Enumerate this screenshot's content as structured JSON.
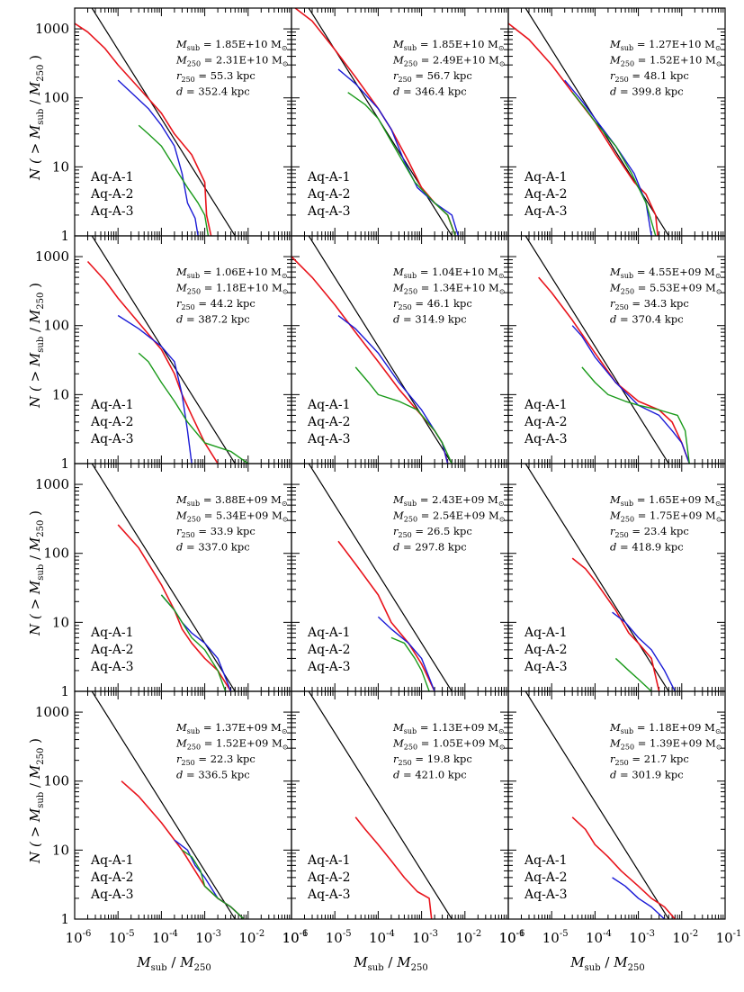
{
  "colors": {
    "Aq-A-1": "#e8141c",
    "Aq-A-2": "#1a1ad6",
    "Aq-A-3": "#1a9a1a",
    "reference": "#000000"
  },
  "axes": {
    "xlabel": {
      "main": "M",
      "sub": "sub",
      "rest1": " / ",
      "main2": "M",
      "sub2": "250"
    },
    "ylabel": {
      "pre": "N ( > ",
      "main": "M",
      "sub": "sub",
      "mid": " / ",
      "main2": "M",
      "sub2": "250",
      "post": " )"
    },
    "x_scale": "log",
    "y_scale": "log",
    "xlim": [
      1e-06,
      0.1
    ],
    "ylim": [
      1,
      2000
    ],
    "x_tick_labels": [
      {
        "base": "10",
        "exp": "-6",
        "value": 1e-06
      },
      {
        "base": "10",
        "exp": "-5",
        "value": 1e-05
      },
      {
        "base": "10",
        "exp": "-4",
        "value": 0.0001
      },
      {
        "base": "10",
        "exp": "-3",
        "value": 0.001
      },
      {
        "base": "10",
        "exp": "-2",
        "value": 0.01
      },
      {
        "base": "10",
        "exp": "-1",
        "value": 0.1
      }
    ],
    "y_tick_labels": [
      {
        "text": "1",
        "value": 1
      },
      {
        "text": "10",
        "value": 10
      },
      {
        "text": "100",
        "value": 100
      },
      {
        "text": "1000",
        "value": 1000
      }
    ]
  },
  "legend": [
    "Aq-A-1",
    "Aq-A-2",
    "Aq-A-3"
  ],
  "chart_data": {
    "type": "line",
    "grid": false,
    "legend_placement": "lower-left",
    "reference_line": {
      "x": [
        1e-06,
        0.01
      ],
      "y": [
        5000,
        0.5
      ]
    },
    "panels": [
      {
        "annotation": [
          "1.85E+10",
          "2.31E+10",
          "55.3",
          "352.4"
        ],
        "series": [
          {
            "name": "Aq-A-1",
            "x": [
              1e-06,
              2e-06,
              5e-06,
              1e-05,
              3e-05,
              0.0001,
              0.0002,
              0.0005,
              0.001,
              0.0011,
              0.0014
            ],
            "y": [
              1200,
              900,
              520,
              300,
              140,
              60,
              30,
              15,
              6,
              2,
              1
            ]
          },
          {
            "name": "Aq-A-2",
            "x": [
              1e-05,
              2e-05,
              5e-05,
              0.0001,
              0.0002,
              0.0003,
              0.0004,
              0.0006,
              0.0007
            ],
            "y": [
              180,
              120,
              70,
              40,
              20,
              8,
              3,
              1.8,
              1
            ]
          },
          {
            "name": "Aq-A-3",
            "x": [
              3e-05,
              5e-05,
              0.0001,
              0.0002,
              0.0004,
              0.0007,
              0.001,
              0.0012
            ],
            "y": [
              40,
              30,
              20,
              10,
              5,
              3,
              2,
              1
            ]
          }
        ]
      },
      {
        "annotation": [
          "1.85E+10",
          "2.49E+10",
          "56.7",
          "346.4"
        ],
        "series": [
          {
            "name": "Aq-A-1",
            "x": [
              1e-06,
              3e-06,
              1e-05,
              3e-05,
              0.0001,
              0.0002,
              0.0005,
              0.001,
              0.002,
              0.004,
              0.006
            ],
            "y": [
              2200,
              1300,
              500,
              200,
              70,
              35,
              12,
              5,
              3,
              2,
              1
            ]
          },
          {
            "name": "Aq-A-2",
            "x": [
              1.2e-05,
              3e-05,
              0.0001,
              0.0002,
              0.0004,
              0.0008,
              0.002,
              0.005,
              0.007
            ],
            "y": [
              260,
              160,
              70,
              35,
              12,
              5,
              3,
              2,
              1
            ]
          },
          {
            "name": "Aq-A-3",
            "x": [
              2e-05,
              5e-05,
              0.0001,
              0.0003,
              0.0007,
              0.002,
              0.004,
              0.006
            ],
            "y": [
              120,
              80,
              50,
              15,
              6,
              3,
              2,
              1
            ]
          }
        ]
      },
      {
        "annotation": [
          "1.27E+10",
          "1.52E+10",
          "48.1",
          "399.8"
        ],
        "series": [
          {
            "name": "Aq-A-1",
            "x": [
              1e-06,
              3e-06,
              1e-05,
              3e-05,
              0.0001,
              0.0003,
              0.0008,
              0.0015,
              0.0025,
              0.0028
            ],
            "y": [
              1200,
              700,
              300,
              120,
              45,
              15,
              6,
              4,
              2,
              1
            ]
          },
          {
            "name": "Aq-A-2",
            "x": [
              2e-05,
              5e-05,
              0.0001,
              0.0003,
              0.0008,
              0.0015,
              0.002
            ],
            "y": [
              180,
              90,
              50,
              20,
              8,
              3,
              1
            ]
          },
          {
            "name": "Aq-A-3",
            "x": [
              3e-05,
              6e-05,
              0.0001,
              0.0003,
              0.0007,
              0.0015,
              0.0025
            ],
            "y": [
              120,
              70,
              45,
              20,
              8,
              3,
              1
            ]
          }
        ]
      },
      {
        "annotation": [
          "1.06E+10",
          "1.18E+10",
          "44.2",
          "387.2"
        ],
        "series": [
          {
            "name": "Aq-A-1",
            "x": [
              2e-06,
              5e-06,
              1e-05,
              3e-05,
              0.0001,
              0.0002,
              0.0003,
              0.0005,
              0.001,
              0.002
            ],
            "y": [
              850,
              450,
              250,
              110,
              45,
              20,
              10,
              5,
              2,
              1
            ]
          },
          {
            "name": "Aq-A-2",
            "x": [
              1e-05,
              3e-05,
              0.0001,
              0.0002,
              0.0003,
              0.0004,
              0.0005
            ],
            "y": [
              140,
              90,
              50,
              30,
              10,
              3,
              1
            ]
          },
          {
            "name": "Aq-A-3",
            "x": [
              3e-05,
              5e-05,
              0.0001,
              0.0002,
              0.0004,
              0.001,
              0.004,
              0.01
            ],
            "y": [
              40,
              30,
              15,
              8,
              4,
              2,
              1.5,
              1
            ]
          }
        ]
      },
      {
        "annotation": [
          "1.04E+10",
          "1.34E+10",
          "46.1",
          "314.9"
        ],
        "series": [
          {
            "name": "Aq-A-1",
            "x": [
              1e-06,
              3e-06,
              1e-05,
              3e-05,
              0.0001,
              0.0003,
              0.001,
              0.002,
              0.003,
              0.004
            ],
            "y": [
              1000,
              500,
              200,
              80,
              30,
              12,
              5,
              3,
              2,
              1
            ]
          },
          {
            "name": "Aq-A-2",
            "x": [
              1.2e-05,
              3e-05,
              0.0001,
              0.0003,
              0.001,
              0.002,
              0.003,
              0.004
            ],
            "y": [
              140,
              90,
              40,
              15,
              6,
              3,
              2,
              1
            ]
          },
          {
            "name": "Aq-A-3",
            "x": [
              3e-05,
              6e-05,
              0.0001,
              0.0003,
              0.0008,
              0.002,
              0.003,
              0.005
            ],
            "y": [
              25,
              15,
              10,
              8,
              6,
              3,
              2,
              1
            ]
          }
        ]
      },
      {
        "annotation": [
          "4.55E+09",
          "5.53E+09",
          "34.3",
          "370.4"
        ],
        "series": [
          {
            "name": "Aq-A-1",
            "x": [
              5e-06,
              1e-05,
              3e-05,
              0.0001,
              0.0003,
              0.001,
              0.003,
              0.006,
              0.01,
              0.015
            ],
            "y": [
              500,
              300,
              120,
              40,
              15,
              8,
              6,
              4,
              2,
              1
            ]
          },
          {
            "name": "Aq-A-2",
            "x": [
              3e-05,
              5e-05,
              0.0001,
              0.0003,
              0.001,
              0.003,
              0.006,
              0.01,
              0.015
            ],
            "y": [
              100,
              70,
              35,
              15,
              7,
              5,
              3,
              2,
              1
            ]
          },
          {
            "name": "Aq-A-3",
            "x": [
              5e-05,
              0.0001,
              0.0002,
              0.0005,
              0.001,
              0.003,
              0.008,
              0.012,
              0.015
            ],
            "y": [
              25,
              15,
              10,
              8,
              7,
              6,
              5,
              3,
              1
            ]
          }
        ]
      },
      {
        "annotation": [
          "3.88E+09",
          "5.34E+09",
          "33.9",
          "337.0"
        ],
        "series": [
          {
            "name": "Aq-A-1",
            "x": [
              1e-05,
              3e-05,
              0.0001,
              0.0002,
              0.0003,
              0.0005,
              0.001,
              0.002,
              0.004
            ],
            "y": [
              260,
              120,
              35,
              15,
              8,
              5,
              3,
              2,
              1
            ]
          },
          {
            "name": "Aq-A-2",
            "x": [
              0.0001,
              0.0002,
              0.0003,
              0.0005,
              0.001,
              0.002,
              0.004
            ],
            "y": [
              25,
              15,
              10,
              7,
              5,
              3,
              1
            ]
          },
          {
            "name": "Aq-A-3",
            "x": [
              0.0001,
              0.0002,
              0.0003,
              0.0005,
              0.001,
              0.002,
              0.003
            ],
            "y": [
              25,
              15,
              10,
              6,
              4,
              2,
              1
            ]
          }
        ]
      },
      {
        "annotation": [
          "2.43E+09",
          "2.54E+09",
          "26.5",
          "297.8"
        ],
        "series": [
          {
            "name": "Aq-A-1",
            "x": [
              1.2e-05,
              3e-05,
              0.0001,
              0.0002,
              0.0005,
              0.001,
              0.002
            ],
            "y": [
              150,
              70,
              25,
              10,
              5,
              2.5,
              1
            ]
          },
          {
            "name": "Aq-A-2",
            "x": [
              0.0001,
              0.0002,
              0.0005,
              0.001,
              0.002
            ],
            "y": [
              12,
              8,
              5,
              3,
              1
            ]
          },
          {
            "name": "Aq-A-3",
            "x": [
              0.0002,
              0.0004,
              0.0007,
              0.001,
              0.0015
            ],
            "y": [
              6,
              5,
              3,
              2,
              1
            ]
          }
        ]
      },
      {
        "annotation": [
          "1.65E+09",
          "1.75E+09",
          "23.4",
          "418.9"
        ],
        "series": [
          {
            "name": "Aq-A-1",
            "x": [
              3e-05,
              6e-05,
              0.0001,
              0.0003,
              0.0006,
              0.001,
              0.002,
              0.003
            ],
            "y": [
              85,
              60,
              40,
              15,
              7,
              5,
              3,
              1
            ]
          },
          {
            "name": "Aq-A-2",
            "x": [
              0.00025,
              0.0005,
              0.001,
              0.002,
              0.004,
              0.007
            ],
            "y": [
              14,
              10,
              6,
              4,
              2,
              1
            ]
          },
          {
            "name": "Aq-A-3",
            "x": [
              0.0003,
              0.0006,
              0.001,
              0.002
            ],
            "y": [
              3,
              2,
              1.5,
              1
            ]
          }
        ]
      },
      {
        "annotation": [
          "1.37E+09",
          "1.52E+09",
          "22.3",
          "336.5"
        ],
        "series": [
          {
            "name": "Aq-A-1",
            "x": [
              1.2e-05,
              3e-05,
              0.0001,
              0.0003,
              0.0006,
              0.001,
              0.002,
              0.004,
              0.008
            ],
            "y": [
              100,
              60,
              25,
              10,
              5,
              3,
              2,
              1.5,
              1
            ]
          },
          {
            "name": "Aq-A-2",
            "x": [
              0.0002,
              0.0004,
              0.0006,
              0.001,
              0.002,
              0.004,
              0.008
            ],
            "y": [
              14,
              10,
              6,
              4,
              2,
              1.5,
              1
            ]
          },
          {
            "name": "Aq-A-3",
            "x": [
              0.0003,
              0.0005,
              0.0008,
              0.001,
              0.002,
              0.004,
              0.008
            ],
            "y": [
              10,
              8,
              5,
              3,
              2,
              1.5,
              1
            ]
          }
        ]
      },
      {
        "annotation": [
          "1.13E+09",
          "1.05E+09",
          "19.8",
          "421.0"
        ],
        "series": [
          {
            "name": "Aq-A-1",
            "x": [
              3e-05,
              5e-05,
              0.0001,
              0.0002,
              0.0004,
              0.0008,
              0.0015,
              0.0017
            ],
            "y": [
              30,
              20,
              12,
              7,
              4,
              2.5,
              2,
              1
            ]
          }
        ]
      },
      {
        "annotation": [
          "1.18E+09",
          "1.39E+09",
          "21.7",
          "301.9"
        ],
        "series": [
          {
            "name": "Aq-A-1",
            "x": [
              3e-05,
              6e-05,
              0.0001,
              0.0002,
              0.0004,
              0.001,
              0.002,
              0.004,
              0.007
            ],
            "y": [
              30,
              20,
              12,
              8,
              5,
              3,
              2,
              1.5,
              1
            ]
          },
          {
            "name": "Aq-A-2",
            "x": [
              0.00025,
              0.0005,
              0.001,
              0.002,
              0.004
            ],
            "y": [
              4,
              3,
              2,
              1.5,
              1
            ]
          }
        ]
      }
    ]
  }
}
